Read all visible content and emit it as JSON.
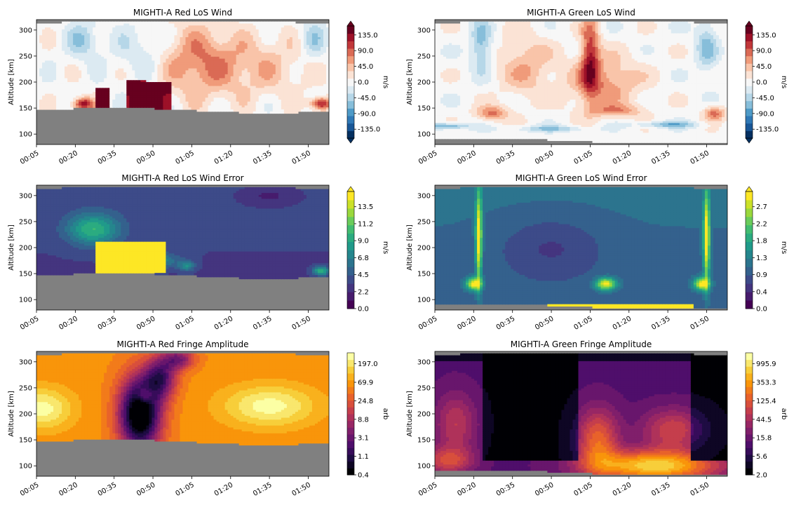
{
  "figure": {
    "panels": [
      {
        "id": "red-los-wind",
        "title": "MIGHTI-A Red LoS Wind",
        "ylabel": "Altitude [km]",
        "cbar_label": "m/s",
        "colormap": "diverging",
        "cbar_extend": "both",
        "cbar_ticks": [
          "135.0",
          "90.0",
          "45.0",
          "0.0",
          "-45.0",
          "-90.0",
          "-135.0"
        ]
      },
      {
        "id": "green-los-wind",
        "title": "MIGHTI-A Green LoS Wind",
        "ylabel": "Altitude [km]",
        "cbar_label": "m/s",
        "colormap": "diverging",
        "cbar_extend": "both",
        "cbar_ticks": [
          "135.0",
          "90.0",
          "45.0",
          "0.0",
          "-45.0",
          "-90.0",
          "-135.0"
        ]
      },
      {
        "id": "red-los-wind-error",
        "title": "MIGHTI-A Red LoS Wind Error",
        "ylabel": "Altitude [km]",
        "cbar_label": "m/s",
        "colormap": "viridis",
        "cbar_extend": "max",
        "cbar_ticks": [
          "13.5",
          "11.2",
          "9.0",
          "6.8",
          "4.5",
          "2.2",
          "0.0"
        ]
      },
      {
        "id": "green-los-wind-error",
        "title": "MIGHTI-A Green LoS Wind Error",
        "ylabel": "Altitude [km]",
        "cbar_label": "m/s",
        "colormap": "viridis",
        "cbar_extend": "max",
        "cbar_ticks": [
          "2.7",
          "2.2",
          "1.8",
          "1.3",
          "0.9",
          "0.4",
          "0.0"
        ]
      },
      {
        "id": "red-fringe-amplitude",
        "title": "MIGHTI-A Red Fringe Amplitude",
        "ylabel": "Altitude [km]",
        "cbar_label": "arb",
        "colormap": "inferno",
        "cbar_extend": "none",
        "cbar_ticks": [
          "197.0",
          "69.9",
          "24.8",
          "8.8",
          "3.1",
          "1.1",
          "0.4"
        ]
      },
      {
        "id": "green-fringe-amplitude",
        "title": "MIGHTI-A Green Fringe Amplitude",
        "ylabel": "Altitude [km]",
        "cbar_label": "arb",
        "colormap": "inferno",
        "cbar_extend": "none",
        "cbar_ticks": [
          "995.9",
          "353.3",
          "125.4",
          "44.5",
          "15.8",
          "5.6",
          "2.0"
        ]
      }
    ],
    "colors": {
      "mask_gray": "#808080",
      "diverging": [
        "#053061",
        "#2166ac",
        "#4393c3",
        "#92c5de",
        "#d1e5f0",
        "#f7f7f7",
        "#fddbc7",
        "#f4a582",
        "#d6604d",
        "#b2182b",
        "#67001f"
      ],
      "viridis": [
        "#440154",
        "#482878",
        "#3e4989",
        "#31688e",
        "#26828e",
        "#1f9e89",
        "#35b779",
        "#6ece58",
        "#b5de2b",
        "#fde725"
      ],
      "inferno": [
        "#000004",
        "#1b0c41",
        "#4a0c6b",
        "#781c6d",
        "#a52c60",
        "#cf4446",
        "#ed6925",
        "#fb9b06",
        "#f7d13d",
        "#fcffa4"
      ]
    }
  },
  "chart_data": [
    {
      "type": "heatmap",
      "title": "MIGHTI-A Red LoS Wind",
      "ylabel": "Altitude [km]",
      "xlabel": "",
      "x_ticks": [
        "00:05",
        "00:20",
        "00:35",
        "00:50",
        "01:05",
        "01:20",
        "01:35",
        "01:50"
      ],
      "y_ticks": [
        100,
        150,
        200,
        250,
        300
      ],
      "ylim": [
        80,
        320
      ],
      "colorbar": {
        "label": "m/s",
        "range": [
          -157.5,
          157.5
        ],
        "ticks": [
          135.0,
          90.0,
          45.0,
          0.0,
          -45.0,
          -90.0,
          -135.0
        ]
      }
    },
    {
      "type": "heatmap",
      "title": "MIGHTI-A Green LoS Wind",
      "ylabel": "Altitude [km]",
      "xlabel": "",
      "x_ticks": [
        "00:05",
        "00:20",
        "00:35",
        "00:50",
        "01:05",
        "01:20",
        "01:35",
        "01:50"
      ],
      "y_ticks": [
        100,
        150,
        200,
        250,
        300
      ],
      "ylim": [
        80,
        320
      ],
      "colorbar": {
        "label": "m/s",
        "range": [
          -157.5,
          157.5
        ],
        "ticks": [
          135.0,
          90.0,
          45.0,
          0.0,
          -45.0,
          -90.0,
          -135.0
        ]
      }
    },
    {
      "type": "heatmap",
      "title": "MIGHTI-A Red LoS Wind Error",
      "ylabel": "Altitude [km]",
      "xlabel": "",
      "x_ticks": [
        "00:05",
        "00:20",
        "00:35",
        "00:50",
        "01:05",
        "01:20",
        "01:35",
        "01:50"
      ],
      "y_ticks": [
        100,
        150,
        200,
        250,
        300
      ],
      "ylim": [
        80,
        320
      ],
      "colorbar": {
        "label": "m/s",
        "range": [
          0.0,
          14.6
        ],
        "ticks": [
          13.5,
          11.2,
          9.0,
          6.8,
          4.5,
          2.2,
          0.0
        ]
      }
    },
    {
      "type": "heatmap",
      "title": "MIGHTI-A Green LoS Wind Error",
      "ylabel": "Altitude [km]",
      "xlabel": "",
      "x_ticks": [
        "00:05",
        "00:20",
        "00:35",
        "00:50",
        "01:05",
        "01:20",
        "01:35",
        "01:50"
      ],
      "y_ticks": [
        100,
        150,
        200,
        250,
        300
      ],
      "ylim": [
        80,
        320
      ],
      "colorbar": {
        "label": "m/s",
        "range": [
          0.0,
          3.0
        ],
        "ticks": [
          2.7,
          2.2,
          1.8,
          1.3,
          0.9,
          0.4,
          0.0
        ]
      }
    },
    {
      "type": "heatmap",
      "title": "MIGHTI-A Red Fringe Amplitude",
      "ylabel": "Altitude [km]",
      "xlabel": "",
      "x_ticks": [
        "00:05",
        "00:20",
        "00:35",
        "00:50",
        "01:05",
        "01:20",
        "01:35",
        "01:50"
      ],
      "y_ticks": [
        100,
        150,
        200,
        250,
        300
      ],
      "ylim": [
        80,
        320
      ],
      "colorbar": {
        "label": "arb",
        "scale": "log",
        "range": [
          0.4,
          400
        ],
        "ticks": [
          197.0,
          69.9,
          24.8,
          8.8,
          3.1,
          1.1,
          0.4
        ]
      }
    },
    {
      "type": "heatmap",
      "title": "MIGHTI-A Green Fringe Amplitude",
      "ylabel": "Altitude [km]",
      "xlabel": "",
      "x_ticks": [
        "00:05",
        "00:20",
        "00:35",
        "00:50",
        "01:05",
        "01:20",
        "01:35",
        "01:50"
      ],
      "y_ticks": [
        100,
        150,
        200,
        250,
        300
      ],
      "ylim": [
        80,
        320
      ],
      "colorbar": {
        "label": "arb",
        "scale": "log",
        "range": [
          2.0,
          2000
        ],
        "ticks": [
          995.9,
          353.3,
          125.4,
          44.5,
          15.8,
          5.6,
          2.0
        ]
      }
    }
  ]
}
